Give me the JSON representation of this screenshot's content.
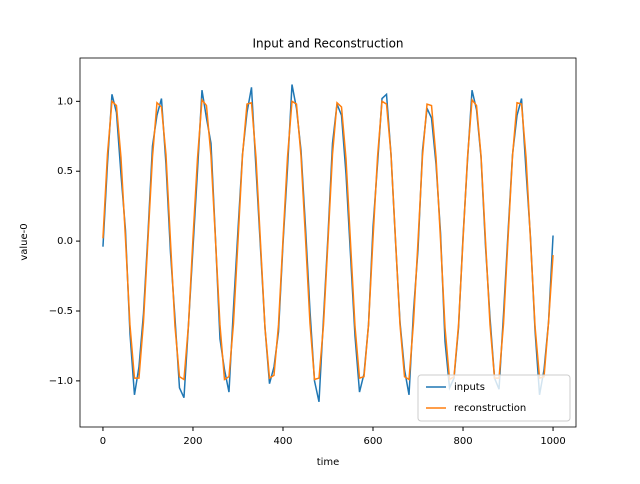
{
  "chart_data": {
    "type": "line",
    "title": "Input and Reconstruction",
    "xlabel": "time",
    "ylabel": "value-0",
    "x": [
      0,
      10,
      20,
      30,
      40,
      50,
      60,
      70,
      80,
      90,
      100,
      110,
      120,
      130,
      140,
      150,
      160,
      170,
      180,
      190,
      200,
      210,
      220,
      230,
      240,
      250,
      260,
      270,
      280,
      290,
      300,
      310,
      320,
      330,
      340,
      350,
      360,
      370,
      380,
      390,
      400,
      410,
      420,
      430,
      440,
      450,
      460,
      470,
      480,
      490,
      500,
      510,
      520,
      530,
      540,
      550,
      560,
      570,
      580,
      590,
      600,
      610,
      620,
      630,
      640,
      650,
      660,
      670,
      680,
      690,
      700,
      710,
      720,
      730,
      740,
      750,
      760,
      770,
      780,
      790,
      800,
      810,
      820,
      830,
      840,
      850,
      860,
      870,
      880,
      890,
      900,
      910,
      920,
      930,
      940,
      950,
      960,
      970,
      980,
      990,
      1000
    ],
    "series": [
      {
        "name": "inputs",
        "color": "#1f77b4",
        "values": [
          -0.04,
          0.55,
          1.05,
          0.92,
          0.48,
          0.08,
          -0.66,
          -1.1,
          -0.9,
          -0.52,
          0.05,
          0.68,
          0.9,
          1.02,
          0.55,
          -0.08,
          -0.55,
          -1.05,
          -1.12,
          -0.6,
          -0.05,
          0.5,
          1.08,
          0.88,
          0.7,
          0.02,
          -0.7,
          -0.92,
          -1.08,
          -0.48,
          0.08,
          0.62,
          0.92,
          1.1,
          0.52,
          -0.05,
          -0.62,
          -1.02,
          -0.9,
          -0.65,
          -0.02,
          0.52,
          1.12,
          0.95,
          0.65,
          0.1,
          -0.5,
          -1.0,
          -1.15,
          -0.55,
          0.04,
          0.7,
          0.98,
          0.9,
          0.48,
          -0.1,
          -0.68,
          -1.08,
          -0.95,
          -0.6,
          0.1,
          0.55,
          1.02,
          1.05,
          0.62,
          0.0,
          -0.58,
          -0.92,
          -1.1,
          -0.5,
          -0.06,
          0.65,
          0.95,
          0.88,
          0.55,
          0.06,
          -0.72,
          -1.05,
          -0.98,
          -0.62,
          0.03,
          0.58,
          1.08,
          0.94,
          0.6,
          -0.04,
          -0.55,
          -0.98,
          -1.06,
          -0.52,
          0.06,
          0.62,
          0.9,
          1.02,
          0.5,
          0.02,
          -0.64,
          -1.1,
          -0.92,
          -0.58,
          0.04
        ]
      },
      {
        "name": "reconstruction",
        "color": "#ff7f0e",
        "values": [
          0.02,
          0.62,
          1.0,
          0.97,
          0.6,
          0.02,
          -0.6,
          -0.98,
          -0.98,
          -0.58,
          0.01,
          0.6,
          0.99,
          0.96,
          0.62,
          0.0,
          -0.61,
          -0.97,
          -0.99,
          -0.6,
          0.02,
          0.59,
          1.01,
          0.97,
          0.61,
          0.01,
          -0.6,
          -0.99,
          -0.97,
          -0.59,
          0.0,
          0.61,
          0.98,
          0.99,
          0.6,
          -0.01,
          -0.62,
          -0.98,
          -0.96,
          -0.6,
          0.01,
          0.6,
          1.0,
          0.98,
          0.61,
          0.02,
          -0.59,
          -0.99,
          -0.98,
          -0.6,
          0.0,
          0.62,
          0.99,
          0.96,
          0.59,
          -0.01,
          -0.61,
          -0.98,
          -0.97,
          -0.6,
          0.02,
          0.6,
          1.0,
          0.98,
          0.62,
          0.01,
          -0.6,
          -0.97,
          -0.99,
          -0.58,
          0.0,
          0.61,
          0.98,
          0.97,
          0.6,
          0.01,
          -0.62,
          -0.99,
          -0.97,
          -0.6,
          0.01,
          0.6,
          1.01,
          0.97,
          0.61,
          0.0,
          -0.6,
          -0.98,
          -0.98,
          -0.59,
          0.02,
          0.61,
          0.99,
          0.98,
          0.6,
          0.0,
          -0.61,
          -0.98,
          -0.97,
          -0.58,
          -0.1
        ]
      }
    ],
    "xlim": [
      -51,
      1051
    ],
    "ylim": [
      -1.33,
      1.31
    ],
    "xticks": [
      0,
      200,
      400,
      600,
      800,
      1000
    ],
    "yticks": [
      {
        "value": -1.0,
        "label": "−1.0"
      },
      {
        "value": -0.5,
        "label": "−0.5"
      },
      {
        "value": 0.0,
        "label": "0.0"
      },
      {
        "value": 0.5,
        "label": "0.5"
      },
      {
        "value": 1.0,
        "label": "1.0"
      }
    ],
    "legend": "lower right"
  }
}
